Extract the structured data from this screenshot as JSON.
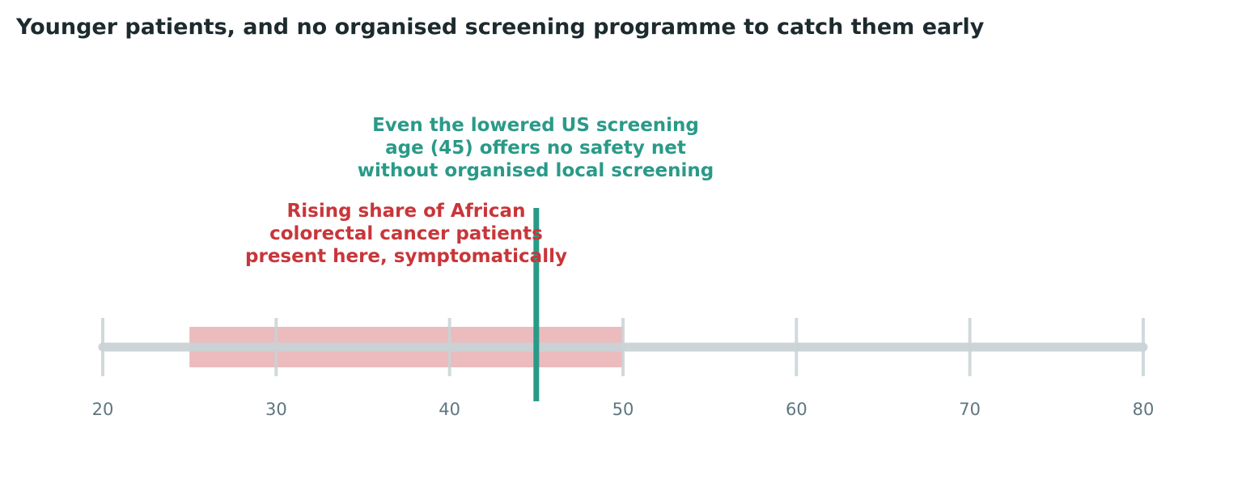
{
  "chart_data": {
    "type": "timeline",
    "title": "Younger patients, and no organised screening programme to catch them early",
    "xlim": [
      20,
      80
    ],
    "ticks": [
      20,
      30,
      40,
      50,
      60,
      70,
      80
    ],
    "tick_labels": [
      "20",
      "30",
      "40",
      "50",
      "60",
      "70",
      "80"
    ],
    "shaded_range": [
      25,
      50
    ],
    "marker_value": 45,
    "annotations": {
      "range": [
        "Rising share of African",
        "colorectal cancer patients",
        "present here, symptomatically"
      ],
      "marker": [
        "Even the lowered US screening",
        "age (45) offers no safety net",
        "without organised local screening"
      ]
    },
    "grid": false,
    "legend": "none"
  },
  "colors": {
    "title": "#1d2a2e",
    "axis_line": "#c9d2d5",
    "tick_label": "#5f7680",
    "shaded_range": "#e9b4b6",
    "range_annotation": "#c8363a",
    "marker": "#2a9a88"
  }
}
